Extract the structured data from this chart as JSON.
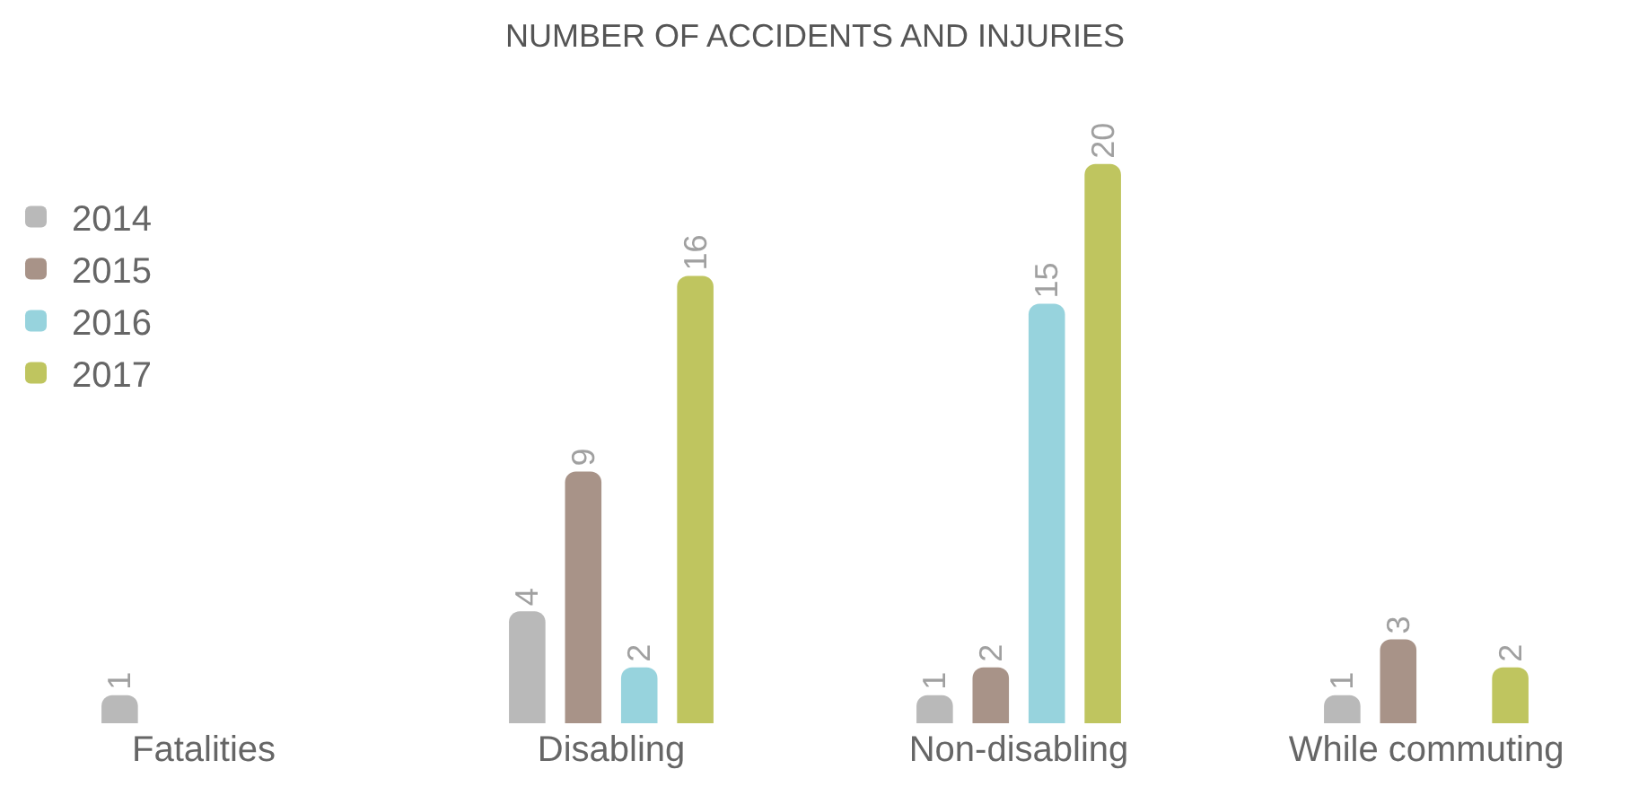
{
  "chart_data": {
    "type": "bar",
    "title": "NUMBER OF ACCIDENTS AND INJURIES",
    "categories": [
      "Fatalities",
      "Disabling",
      "Non-disabling",
      "While commuting"
    ],
    "series": [
      {
        "name": "2014",
        "color": "#b9b9b9",
        "values": [
          1,
          4,
          1,
          1
        ]
      },
      {
        "name": "2015",
        "color": "#a89388",
        "values": [
          null,
          9,
          2,
          3
        ]
      },
      {
        "name": "2016",
        "color": "#97d3dd",
        "values": [
          null,
          2,
          15,
          null
        ]
      },
      {
        "name": "2017",
        "color": "#bfc55f",
        "values": [
          null,
          16,
          20,
          2
        ]
      }
    ],
    "data_labels": true,
    "legend": "top left"
  }
}
